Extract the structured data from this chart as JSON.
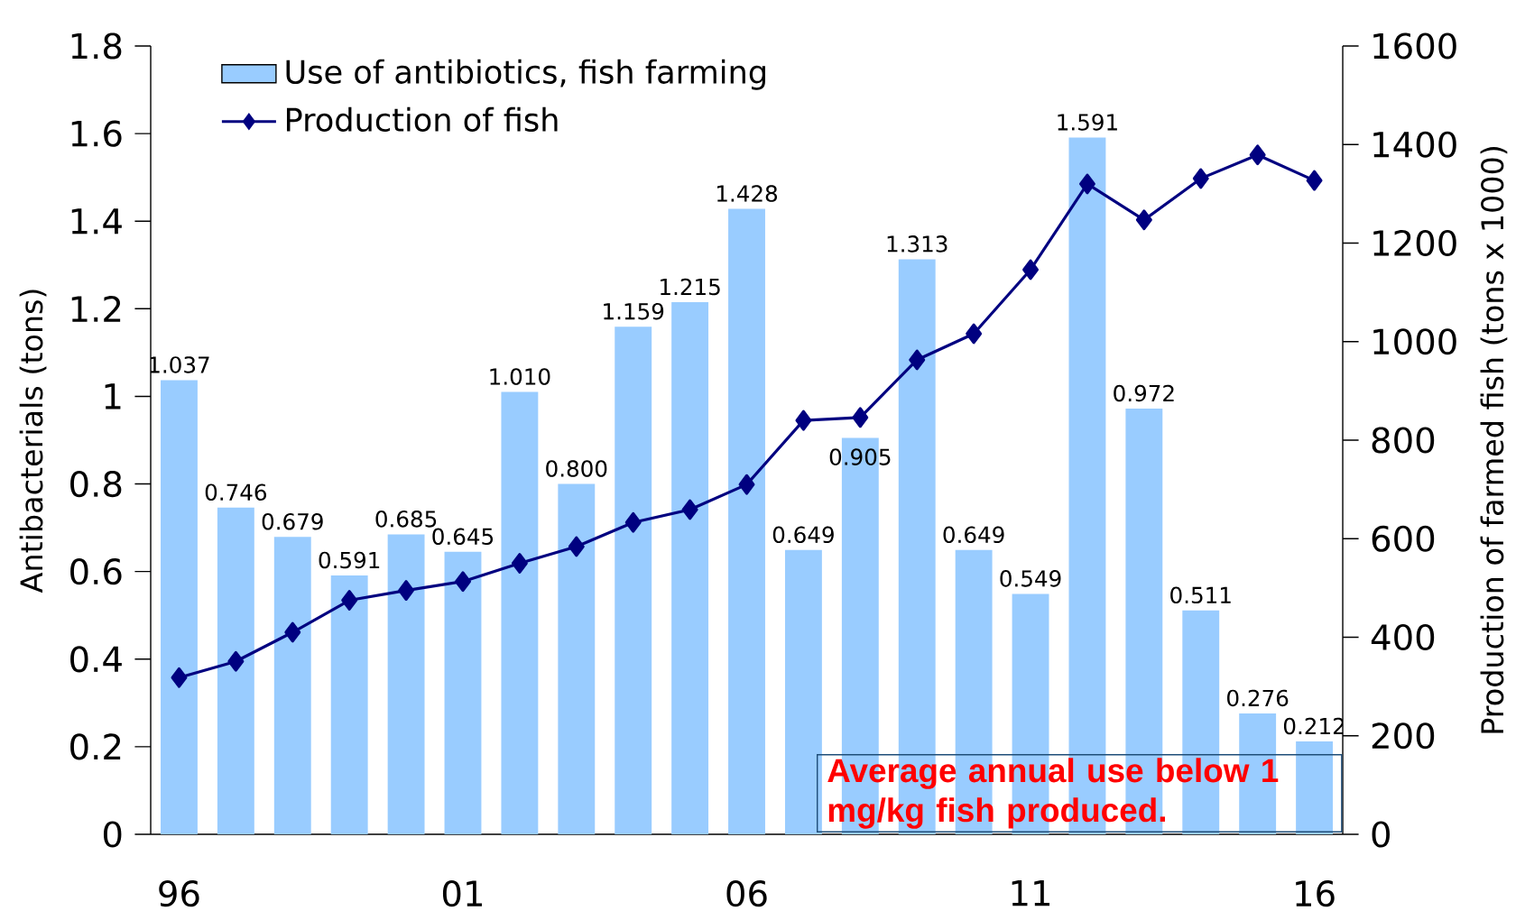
{
  "chart_data": {
    "type": "bar",
    "categories": [
      "96",
      null,
      null,
      null,
      null,
      "01",
      null,
      null,
      null,
      null,
      "06",
      null,
      null,
      null,
      null,
      "11",
      null,
      null,
      null,
      null,
      "16"
    ],
    "ylabel": "Antibacterials (tons)",
    "y2label": "Production of farmed fish (tons x 1000)",
    "ylim": [
      0,
      1.8
    ],
    "yticks": [
      0,
      0.2,
      0.4,
      0.6,
      0.8,
      1,
      1.2,
      1.4,
      1.6,
      1.8
    ],
    "y2lim": [
      0,
      1600
    ],
    "y2ticks": [
      0,
      200,
      400,
      600,
      800,
      1000,
      1200,
      1400,
      1600
    ],
    "legend": "top left",
    "marker": "diamond",
    "annotations": [
      "Average annual use below 1 mg/kg fish produced."
    ],
    "series": [
      {
        "name": "Use of antibiotics, fish farming",
        "color": "#99ccff",
        "values": [
          1.037,
          0.746,
          0.679,
          0.591,
          0.685,
          0.645,
          1.01,
          0.8,
          1.159,
          1.215,
          1.428,
          0.649,
          0.905,
          1.313,
          0.649,
          0.549,
          1.591,
          0.972,
          0.511,
          0.276,
          0.212
        ],
        "value_labels": [
          "1.037",
          "0.746",
          "0.679",
          "0.591",
          "0.685",
          "0.645",
          "1.010",
          "0.800",
          "1.159",
          "1.215",
          "1.428",
          "0.649",
          "0.905",
          "1.313",
          "0.649",
          "0.549",
          "1.591",
          "0.972",
          "0.511",
          "0.276",
          "0.212"
        ]
      },
      {
        "name": "Production of fish",
        "type": "line",
        "axis": "y2",
        "color": "#000080",
        "values": [
          318,
          351,
          410,
          475,
          495,
          513,
          550,
          584,
          633,
          659,
          710,
          840,
          846,
          963,
          1016,
          1146,
          1320,
          1247,
          1331,
          1379,
          1327
        ]
      }
    ]
  }
}
